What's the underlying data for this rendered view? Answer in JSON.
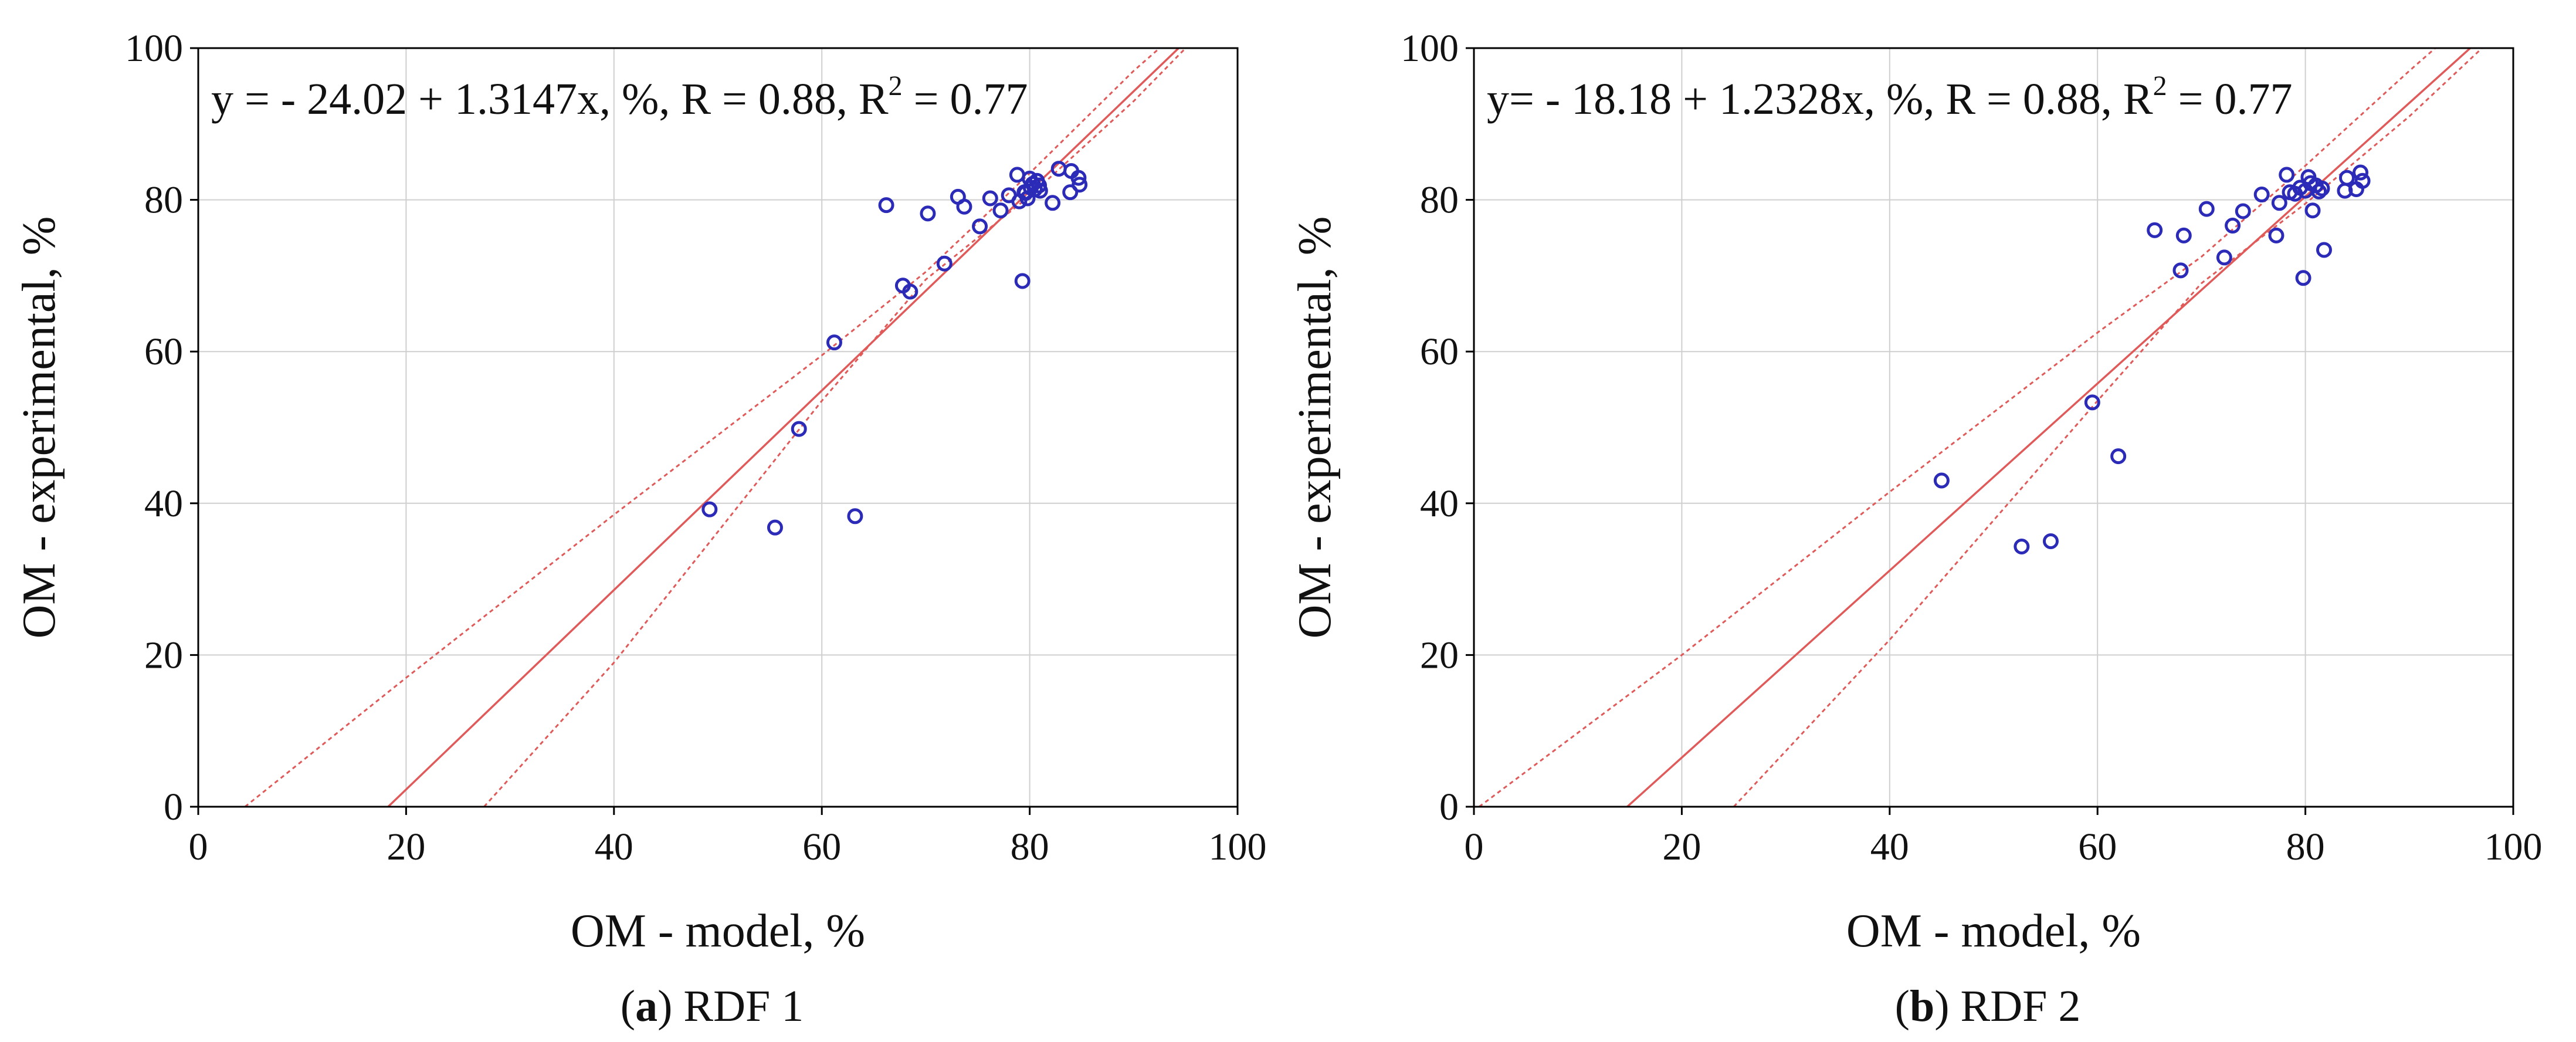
{
  "figure": {
    "colors": {
      "fit_line": "#e05a5a",
      "points": "#2b2bb8",
      "grid": "#cfcfcf",
      "axis": "#000000"
    }
  },
  "chart_data": [
    {
      "type": "scatter",
      "caption_label": "a",
      "caption_text": "RDF 1",
      "equation": {
        "prefix": "y = - 24.02 + 1.3147x, %, R = 0.88, R",
        "sup": "2",
        "suffix": " = 0.77"
      },
      "xlabel": "OM - model, %",
      "ylabel": "OM - experimental, %",
      "xlim": [
        0,
        100
      ],
      "ylim": [
        0,
        100
      ],
      "xticks": [
        0,
        20,
        40,
        60,
        80,
        100
      ],
      "yticks": [
        0,
        20,
        40,
        60,
        80,
        100
      ],
      "grid": true,
      "fit": {
        "intercept": -24.02,
        "slope": 1.3147
      },
      "confidence_band": {
        "upper": [
          [
            4.5,
            0
          ],
          [
            20,
            17
          ],
          [
            40,
            38.5
          ],
          [
            60,
            59.5
          ],
          [
            70,
            70.5
          ],
          [
            80,
            83.5
          ],
          [
            90,
            97
          ],
          [
            92.5,
            100
          ]
        ],
        "lower": [
          [
            27.5,
            0
          ],
          [
            40,
            19
          ],
          [
            60,
            53.5
          ],
          [
            70,
            69.5
          ],
          [
            80,
            80.5
          ],
          [
            90,
            93
          ],
          [
            95,
            100
          ]
        ]
      },
      "points": [
        [
          49.2,
          39.2
        ],
        [
          55.5,
          36.8
        ],
        [
          57.8,
          49.8
        ],
        [
          61.2,
          61.2
        ],
        [
          63.2,
          38.3
        ],
        [
          66.2,
          79.3
        ],
        [
          67.8,
          68.7
        ],
        [
          68.5,
          67.9
        ],
        [
          70.2,
          78.2
        ],
        [
          71.8,
          71.6
        ],
        [
          73.1,
          80.4
        ],
        [
          73.7,
          79.1
        ],
        [
          75.2,
          76.5
        ],
        [
          76.2,
          80.2
        ],
        [
          77.2,
          78.6
        ],
        [
          78.0,
          80.6
        ],
        [
          78.8,
          83.3
        ],
        [
          79.0,
          79.8
        ],
        [
          79.3,
          69.3
        ],
        [
          79.5,
          81.0
        ],
        [
          79.8,
          80.2
        ],
        [
          80.0,
          82.8
        ],
        [
          80.1,
          81.6
        ],
        [
          80.3,
          82.1
        ],
        [
          80.5,
          81.4
        ],
        [
          80.7,
          82.5
        ],
        [
          80.9,
          81.9
        ],
        [
          82.2,
          79.6
        ],
        [
          82.8,
          84.1
        ],
        [
          83.9,
          81.0
        ],
        [
          84.0,
          83.8
        ],
        [
          84.7,
          82.9
        ],
        [
          84.8,
          82.0
        ],
        [
          79.6,
          80.9
        ],
        [
          81.0,
          81.2
        ]
      ]
    },
    {
      "type": "scatter",
      "caption_label": "b",
      "caption_text": "RDF 2",
      "equation": {
        "prefix": "y= - 18.18 + 1.2328x, %, R = 0.88, R",
        "sup": "2",
        "suffix": " = 0.77"
      },
      "xlabel": "OM - model, %",
      "ylabel": "OM - experimental, %",
      "xlim": [
        0,
        100
      ],
      "ylim": [
        0,
        100
      ],
      "xticks": [
        0,
        20,
        40,
        60,
        80,
        100
      ],
      "yticks": [
        0,
        20,
        40,
        60,
        80,
        100
      ],
      "grid": true,
      "fit": {
        "intercept": -18.18,
        "slope": 1.2328
      },
      "confidence_band": {
        "upper": [
          [
            0.5,
            0
          ],
          [
            20,
            20
          ],
          [
            40,
            41.5
          ],
          [
            60,
            62.5
          ],
          [
            70,
            72.5
          ],
          [
            80,
            84.5
          ],
          [
            90,
            97
          ],
          [
            92.5,
            100
          ]
        ],
        "lower": [
          [
            25,
            0
          ],
          [
            40,
            22
          ],
          [
            60,
            53.5
          ],
          [
            70,
            69
          ],
          [
            80,
            79.5
          ],
          [
            90,
            91
          ],
          [
            97,
            100
          ]
        ]
      },
      "points": [
        [
          45.0,
          43.0
        ],
        [
          52.7,
          34.3
        ],
        [
          55.5,
          35.0
        ],
        [
          59.5,
          53.3
        ],
        [
          62.0,
          46.2
        ],
        [
          65.5,
          76.0
        ],
        [
          68.0,
          70.7
        ],
        [
          68.3,
          75.3
        ],
        [
          70.5,
          78.8
        ],
        [
          72.2,
          72.4
        ],
        [
          73.0,
          76.6
        ],
        [
          74.0,
          78.5
        ],
        [
          75.8,
          80.7
        ],
        [
          77.2,
          75.3
        ],
        [
          77.5,
          79.6
        ],
        [
          78.2,
          83.3
        ],
        [
          78.5,
          81.0
        ],
        [
          79.5,
          81.6
        ],
        [
          79.8,
          69.7
        ],
        [
          80.3,
          83.0
        ],
        [
          80.5,
          82.2
        ],
        [
          80.7,
          78.6
        ],
        [
          81.0,
          81.9
        ],
        [
          81.3,
          81.1
        ],
        [
          81.6,
          81.5
        ],
        [
          81.8,
          73.4
        ],
        [
          83.8,
          81.2
        ],
        [
          84.0,
          82.9
        ],
        [
          84.9,
          81.4
        ],
        [
          85.3,
          83.6
        ],
        [
          85.5,
          82.5
        ],
        [
          80.0,
          81.2
        ],
        [
          79.0,
          80.8
        ]
      ]
    }
  ]
}
